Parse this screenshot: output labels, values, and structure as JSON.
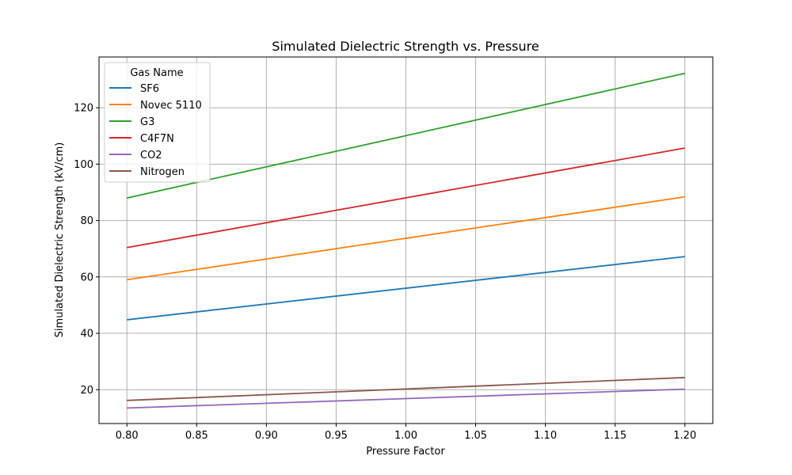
{
  "chart_data": {
    "type": "line",
    "title": "Simulated Dielectric Strength vs. Pressure",
    "xlabel": "Pressure Factor",
    "ylabel": "Simulated Dielectric Strength (kV/cm)",
    "xlim": [
      0.78,
      1.22
    ],
    "ylim": [
      8,
      138
    ],
    "x": [
      0.8,
      1.2
    ],
    "xticks": [
      "0.80",
      "0.85",
      "0.90",
      "0.95",
      "1.00",
      "1.05",
      "1.10",
      "1.15",
      "1.20"
    ],
    "yticks": [
      "20",
      "40",
      "60",
      "80",
      "100",
      "120"
    ],
    "grid": true,
    "legend": {
      "title": "Gas Name",
      "placement": "top-left"
    },
    "series": [
      {
        "name": "SF6",
        "color": "#1f77b4",
        "values": [
          44.8,
          67.2
        ]
      },
      {
        "name": "Novec 5110",
        "color": "#ff7f0e",
        "values": [
          59.0,
          88.4
        ]
      },
      {
        "name": "G3",
        "color": "#2ca02c",
        "values": [
          88.0,
          132.2
        ]
      },
      {
        "name": "C4F7N",
        "color": "#d62728",
        "values": [
          70.4,
          105.7
        ]
      },
      {
        "name": "CO2",
        "color": "#9467bd",
        "values": [
          13.5,
          20.2
        ]
      },
      {
        "name": "Nitrogen",
        "color": "#8c564b",
        "values": [
          16.2,
          24.3
        ]
      }
    ]
  }
}
